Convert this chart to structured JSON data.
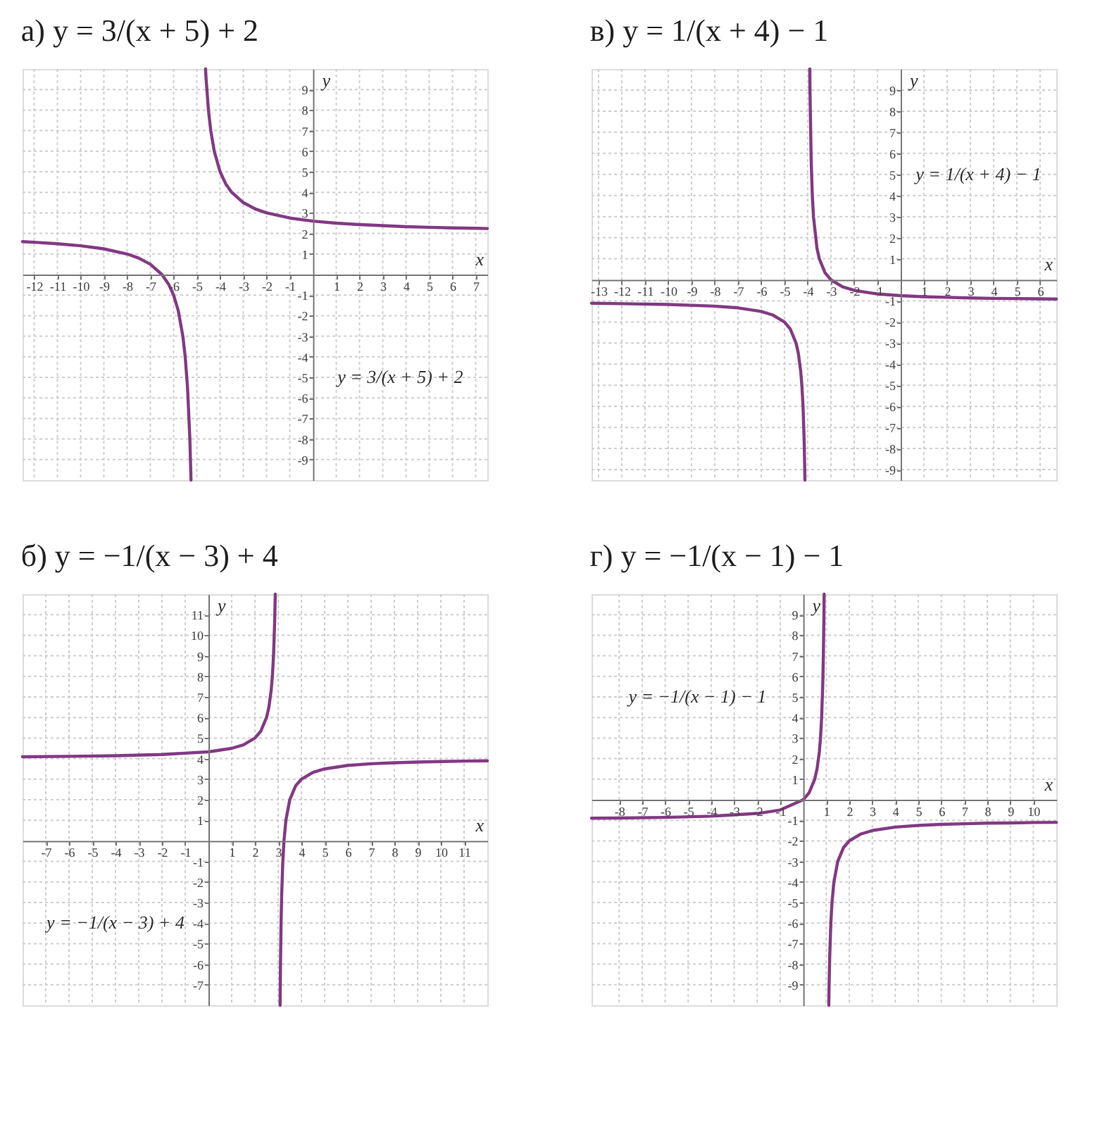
{
  "chart_data": [
    {
      "type": "line",
      "title": "а) y = 3/(x + 5) + 2",
      "xlabel": "x",
      "ylabel": "y",
      "xlim": [
        -12.5,
        7.5
      ],
      "ylim": [
        -10,
        10
      ],
      "xticks": [
        -12,
        -11,
        -10,
        -9,
        -8,
        -7,
        -6,
        -5,
        -4,
        -3,
        -2,
        -1,
        1,
        2,
        3,
        4,
        5,
        6,
        7
      ],
      "yticks": [
        -9,
        -8,
        -7,
        -6,
        -5,
        -4,
        -3,
        -2,
        -1,
        1,
        2,
        3,
        4,
        5,
        6,
        7,
        8,
        9
      ],
      "grid": true,
      "series": [
        {
          "color": "#833a84",
          "x": [
            -12.5,
            -12,
            -11,
            -10,
            -9,
            -8,
            -7.5,
            -7,
            -6.5,
            -6.2,
            -6,
            -5.8,
            -5.6,
            -5.5,
            -5.4,
            -5.3,
            -5.25,
            -5,
            -4.625,
            -4.6,
            -4.5,
            -4.4,
            -4.25,
            -4,
            -3.75,
            -3.5,
            -3,
            -2.5,
            -2,
            -1,
            0,
            1,
            2,
            3,
            4,
            5,
            6,
            7,
            7.5
          ],
          "values": [
            1.6,
            1.57,
            1.5,
            1.4,
            1.25,
            1,
            0.8,
            0.5,
            0,
            -0.5,
            -1,
            -1.75,
            -3,
            -4,
            -5.5,
            -8,
            -10,
            null,
            10,
            9.5,
            8,
            7,
            6,
            5,
            4.4,
            4,
            3.5,
            3.2,
            3,
            2.75,
            2.6,
            2.5,
            2.43,
            2.38,
            2.33,
            2.3,
            2.27,
            2.25,
            2.24
          ]
        }
      ],
      "annotations": [
        "y = 3/(x + 5) + 2"
      ]
    },
    {
      "type": "line",
      "title": "в) y = 1/(x + 4) − 1",
      "xlabel": "x",
      "ylabel": "y",
      "xlim": [
        -13.3,
        6.7
      ],
      "ylim": [
        -9.5,
        10
      ],
      "xticks": [
        -13,
        -12,
        -11,
        -10,
        -9,
        -8,
        -7,
        -6,
        -5,
        -4,
        -3,
        -2,
        -1,
        1,
        2,
        3,
        4,
        5,
        6
      ],
      "yticks": [
        -9,
        -8,
        -7,
        -6,
        -5,
        -4,
        -3,
        -2,
        -1,
        1,
        2,
        3,
        4,
        5,
        6,
        7,
        8,
        9
      ],
      "grid": true,
      "series": [
        {
          "color": "#833a84",
          "x": [
            -13.3,
            -12,
            -10,
            -8,
            -7,
            -6,
            -5.5,
            -5,
            -4.75,
            -4.5,
            -4.4,
            -4.3,
            -4.25,
            -4.2,
            -4.15,
            -4.118,
            -4,
            -3.909,
            -3.9,
            -3.85,
            -3.8,
            -3.75,
            -3.6,
            -3.5,
            -3.25,
            -3,
            -2.5,
            -2,
            -1,
            0,
            1,
            2,
            3,
            4,
            5,
            6,
            6.7
          ],
          "values": [
            -1.11,
            -1.13,
            -1.17,
            -1.25,
            -1.33,
            -1.5,
            -1.67,
            -2,
            -2.33,
            -3,
            -3.5,
            -4.33,
            -5,
            -6,
            -7.67,
            -9.5,
            null,
            10,
            9,
            5.67,
            4,
            3,
            1.5,
            1,
            0.33,
            0,
            -0.33,
            -0.5,
            -0.67,
            -0.75,
            -0.8,
            -0.83,
            -0.86,
            -0.88,
            -0.89,
            -0.9,
            -0.91
          ]
        }
      ],
      "annotations": [
        "y = 1/(x + 4) − 1"
      ]
    },
    {
      "type": "line",
      "title": "б) y = −1/(x − 3) + 4",
      "xlabel": "x",
      "ylabel": "y",
      "xlim": [
        -8,
        12
      ],
      "ylim": [
        -8,
        12
      ],
      "xticks": [
        -7,
        -6,
        -5,
        -4,
        -3,
        -2,
        -1,
        1,
        2,
        3,
        4,
        5,
        6,
        7,
        8,
        9,
        10,
        11
      ],
      "yticks": [
        -7,
        -6,
        -5,
        -4,
        -3,
        -2,
        -1,
        1,
        2,
        3,
        4,
        5,
        6,
        7,
        8,
        9,
        10,
        11
      ],
      "grid": true,
      "series": [
        {
          "color": "#833a84",
          "x": [
            -8,
            -6,
            -4,
            -2,
            0,
            1,
            1.5,
            2,
            2.25,
            2.5,
            2.6,
            2.7,
            2.75,
            2.8,
            2.85,
            2.875,
            3,
            3.083,
            3.1,
            3.125,
            3.15,
            3.2,
            3.25,
            3.333,
            3.5,
            3.75,
            4,
            4.5,
            5,
            6,
            7,
            8,
            9,
            10,
            11,
            12
          ],
          "values": [
            4.09,
            4.11,
            4.14,
            4.2,
            4.33,
            4.5,
            4.67,
            5,
            5.33,
            6,
            6.5,
            7.33,
            8,
            9,
            10.67,
            12,
            null,
            -8,
            -6,
            -4,
            -2.67,
            -1,
            0,
            1,
            2,
            2.67,
            3,
            3.33,
            3.5,
            3.67,
            3.75,
            3.8,
            3.83,
            3.86,
            3.88,
            3.89
          ]
        }
      ],
      "annotations": [
        "y = −1/(x − 3) + 4"
      ]
    },
    {
      "type": "line",
      "title": "г) y = −1/(x − 1) − 1",
      "xlabel": "x",
      "ylabel": "y",
      "xlim": [
        -9.2,
        11
      ],
      "ylim": [
        -10,
        10
      ],
      "xticks": [
        -8,
        -7,
        -6,
        -5,
        -4,
        -3,
        -2,
        -1,
        1,
        2,
        3,
        4,
        5,
        6,
        7,
        8,
        9,
        10
      ],
      "yticks": [
        -9,
        -8,
        -7,
        -6,
        -5,
        -4,
        -3,
        -2,
        -1,
        1,
        2,
        3,
        4,
        5,
        6,
        7,
        8,
        9
      ],
      "grid": true,
      "series": [
        {
          "color": "#833a84",
          "x": [
            -9.2,
            -8,
            -6,
            -4,
            -2,
            -1,
            0,
            0.25,
            0.5,
            0.6,
            0.7,
            0.75,
            0.8,
            0.85,
            0.875,
            0.9,
            0.909,
            1,
            1.111,
            1.125,
            1.15,
            1.2,
            1.25,
            1.333,
            1.5,
            1.75,
            2,
            2.5,
            3,
            4,
            5,
            6,
            7,
            8,
            9,
            10,
            11
          ],
          "values": [
            -0.9,
            -0.89,
            -0.86,
            -0.8,
            -0.67,
            -0.5,
            0,
            0.33,
            1,
            1.5,
            2.33,
            3,
            4,
            5.67,
            7,
            9,
            10,
            null,
            -10,
            -9,
            -7.67,
            -6,
            -5,
            -4,
            -3,
            -2.33,
            -2,
            -1.67,
            -1.5,
            -1.33,
            -1.25,
            -1.2,
            -1.17,
            -1.14,
            -1.13,
            -1.11,
            -1.1
          ]
        }
      ],
      "annotations": [
        "y = −1/(x − 1) − 1"
      ]
    }
  ]
}
